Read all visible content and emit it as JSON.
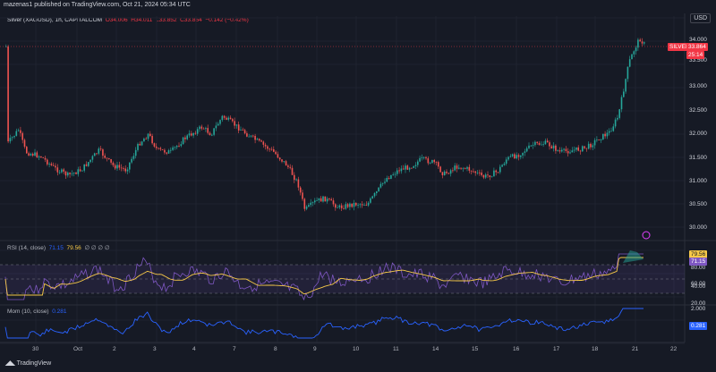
{
  "header": {
    "published": "mazenas1 published on TradingView.com, Oct 21, 2024 05:34 UTC",
    "currency": "USD"
  },
  "main_legend": {
    "symbol": "Silver (XAGUSD), 1h, CAPITALCOM",
    "open": "O34.006",
    "high": "H34.011",
    "low": "L33.852",
    "close": "C33.864",
    "change": "−0.142 (−0.42%)"
  },
  "price_axis": {
    "labels": [
      "34.000",
      "33.500",
      "33.000",
      "32.500",
      "32.000",
      "31.500",
      "31.000",
      "30.500",
      "30.000"
    ],
    "last_symbol": "SILVER",
    "last_price": "33.864",
    "countdown": "25:14",
    "color_up": "#26a69a",
    "color_down": "#ef5350",
    "color_tag": "#f23645"
  },
  "rsi": {
    "label": "RSI (14, close)",
    "v1": "71.15",
    "v2": "79.56",
    "extra": "∅ ∅ ∅ ∅",
    "axis_labels": [
      "80.00",
      "60.00",
      "40.00",
      "20.00"
    ],
    "last_rsi": "71.15",
    "last_ma": "79.56"
  },
  "mom": {
    "label": "Mom (10, close)",
    "value": "0.281",
    "axis_top": "2.000",
    "last": "0.281"
  },
  "time_axis": [
    "30",
    "Oct",
    "2",
    "3",
    "4",
    "7",
    "8",
    "9",
    "10",
    "11",
    "14",
    "15",
    "16",
    "17",
    "18",
    "21",
    "22"
  ],
  "footer": "TradingView"
}
